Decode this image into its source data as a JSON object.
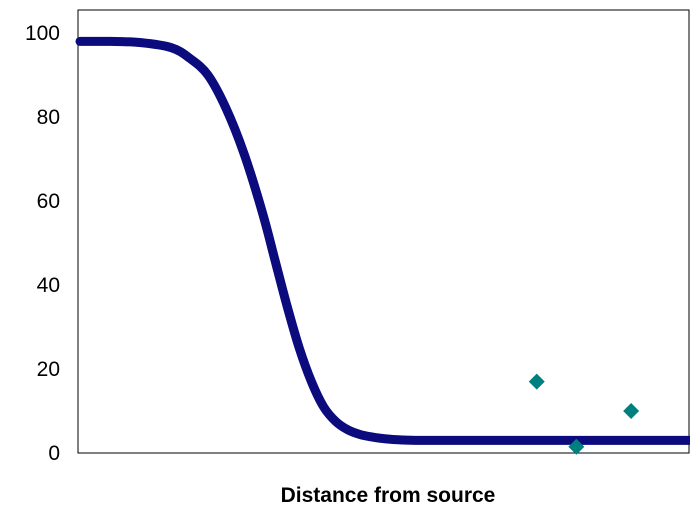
{
  "chart_data": {
    "type": "scatter",
    "title": "",
    "xlabel": "Distance from source",
    "ylabel": "",
    "xlim": [
      0,
      100
    ],
    "ylim": [
      0,
      100
    ],
    "y_ticks": [
      0,
      20,
      40,
      60,
      80,
      100
    ],
    "x_ticks": [],
    "grid": false,
    "legend": "none",
    "series": [
      {
        "kind": "line",
        "color": "#0b0b7d",
        "x": [
          0,
          5,
          10,
          15,
          18,
          21,
          24,
          27,
          30,
          32,
          34,
          36,
          38,
          40,
          42,
          44,
          46,
          48,
          50,
          53,
          56,
          60,
          65,
          70,
          80,
          90,
          100
        ],
        "values": [
          98,
          98,
          97.7,
          96.5,
          94,
          90,
          82,
          71,
          57,
          46,
          35,
          25,
          17,
          11,
          7.5,
          5.5,
          4.4,
          3.8,
          3.4,
          3.1,
          3,
          3,
          3,
          3,
          3,
          3,
          3
        ]
      },
      {
        "kind": "scatter",
        "color": "#007f7f",
        "x": [
          75,
          81.5,
          90.5
        ],
        "values": [
          17,
          1.5,
          10
        ]
      }
    ]
  }
}
